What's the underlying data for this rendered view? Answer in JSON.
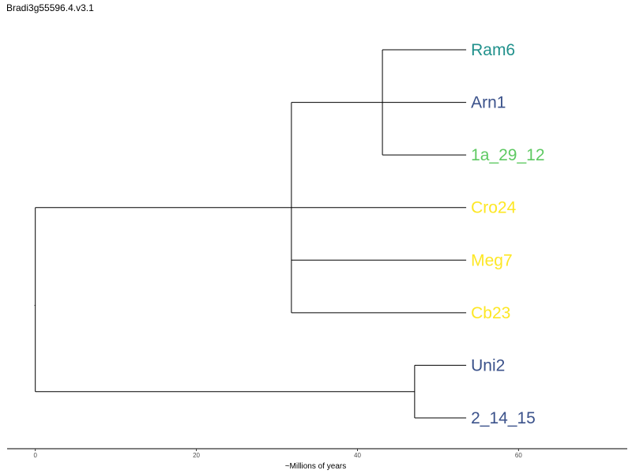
{
  "title": "Bradi3g55596.4.v3.1",
  "axis": {
    "label": "~Millions of years",
    "ticks": [
      0,
      20,
      40,
      60
    ],
    "range": [
      -3.5,
      73.5
    ]
  },
  "tree": {
    "root_age": 0,
    "tip_age": 53.5,
    "nodes": [
      {
        "id": "root",
        "x": 0,
        "children": [
          "A",
          "B"
        ]
      },
      {
        "id": "A",
        "x": 31.8,
        "children": [
          "C",
          "Cro24",
          "Meg7",
          "Cb23"
        ]
      },
      {
        "id": "C",
        "x": 43.1,
        "children": [
          "Ram6",
          "Arn1",
          "1a_29_12"
        ]
      },
      {
        "id": "B",
        "x": 47.1,
        "children": [
          "Uni2",
          "2_14_15"
        ]
      }
    ],
    "tips": [
      {
        "id": "Ram6",
        "label": "Ram6",
        "color": "#21918c"
      },
      {
        "id": "Arn1",
        "label": "Arn1",
        "color": "#3b528b"
      },
      {
        "id": "1a_29_12",
        "label": "1a_29_12",
        "color": "#5ec962"
      },
      {
        "id": "Cro24",
        "label": "Cro24",
        "color": "#fde725"
      },
      {
        "id": "Meg7",
        "label": "Meg7",
        "color": "#fde725"
      },
      {
        "id": "Cb23",
        "label": "Cb23",
        "color": "#fde725"
      },
      {
        "id": "Uni2",
        "label": "Uni2",
        "color": "#3b528b"
      },
      {
        "id": "2_14_15",
        "label": "2_14_15",
        "color": "#3b528b"
      }
    ]
  }
}
